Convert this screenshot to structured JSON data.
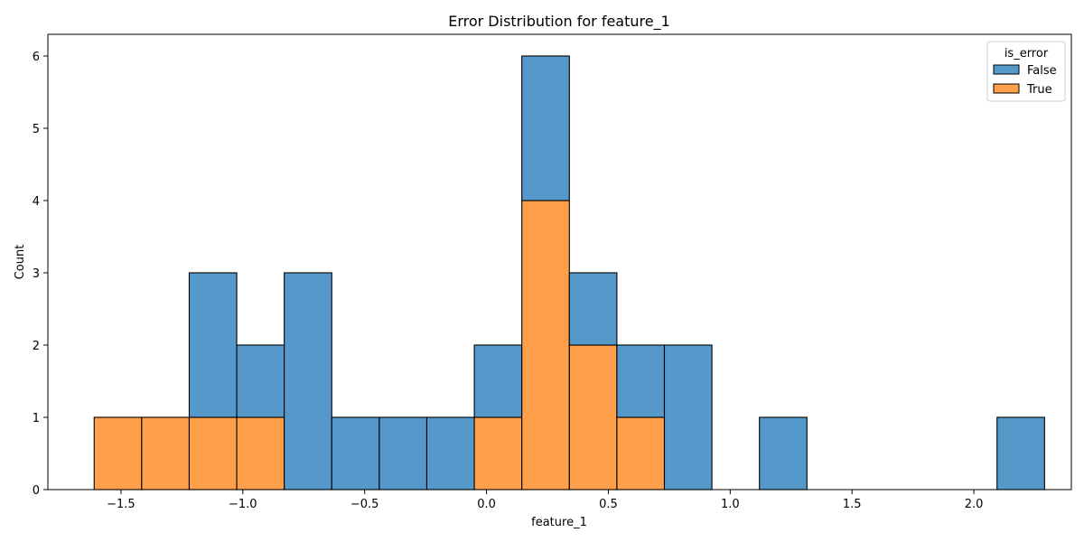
{
  "chart_data": {
    "type": "bar",
    "stacked": true,
    "title": "Error Distribution for feature_1",
    "xlabel": "feature_1",
    "ylabel": "Count",
    "xlim": [
      -1.8,
      2.4
    ],
    "ylim": [
      0,
      6.3
    ],
    "x_ticks": [
      -1.5,
      -1.0,
      -0.5,
      0.0,
      0.5,
      1.0,
      1.5,
      2.0
    ],
    "x_tick_labels": [
      "−1.5",
      "−1.0",
      "−0.5",
      "0.0",
      "0.5",
      "1.0",
      "1.5",
      "2.0"
    ],
    "y_ticks": [
      0,
      1,
      2,
      3,
      4,
      5,
      6
    ],
    "y_tick_labels": [
      "0",
      "1",
      "2",
      "3",
      "4",
      "5",
      "6"
    ],
    "bin_edges": [
      -1.61,
      -1.415,
      -1.22,
      -1.025,
      -0.83,
      -0.635,
      -0.44,
      -0.245,
      -0.05,
      0.145,
      0.34,
      0.535,
      0.73,
      0.925,
      1.12,
      1.315,
      1.51,
      1.705,
      1.9,
      2.095,
      2.29
    ],
    "series": [
      {
        "name": "True",
        "color": "#ff9f4a",
        "values": [
          1,
          1,
          1,
          1,
          0,
          0,
          0,
          0,
          1,
          4,
          2,
          1,
          0,
          0,
          0,
          0,
          0,
          0,
          0,
          0
        ]
      },
      {
        "name": "False",
        "color": "#5499c9",
        "values": [
          0,
          0,
          2,
          1,
          3,
          1,
          1,
          1,
          1,
          2,
          1,
          1,
          2,
          0,
          1,
          0,
          0,
          0,
          0,
          1
        ]
      }
    ],
    "legend": {
      "title": "is_error",
      "entries": [
        "False",
        "True"
      ],
      "placement": "top-right"
    },
    "grid": false
  }
}
